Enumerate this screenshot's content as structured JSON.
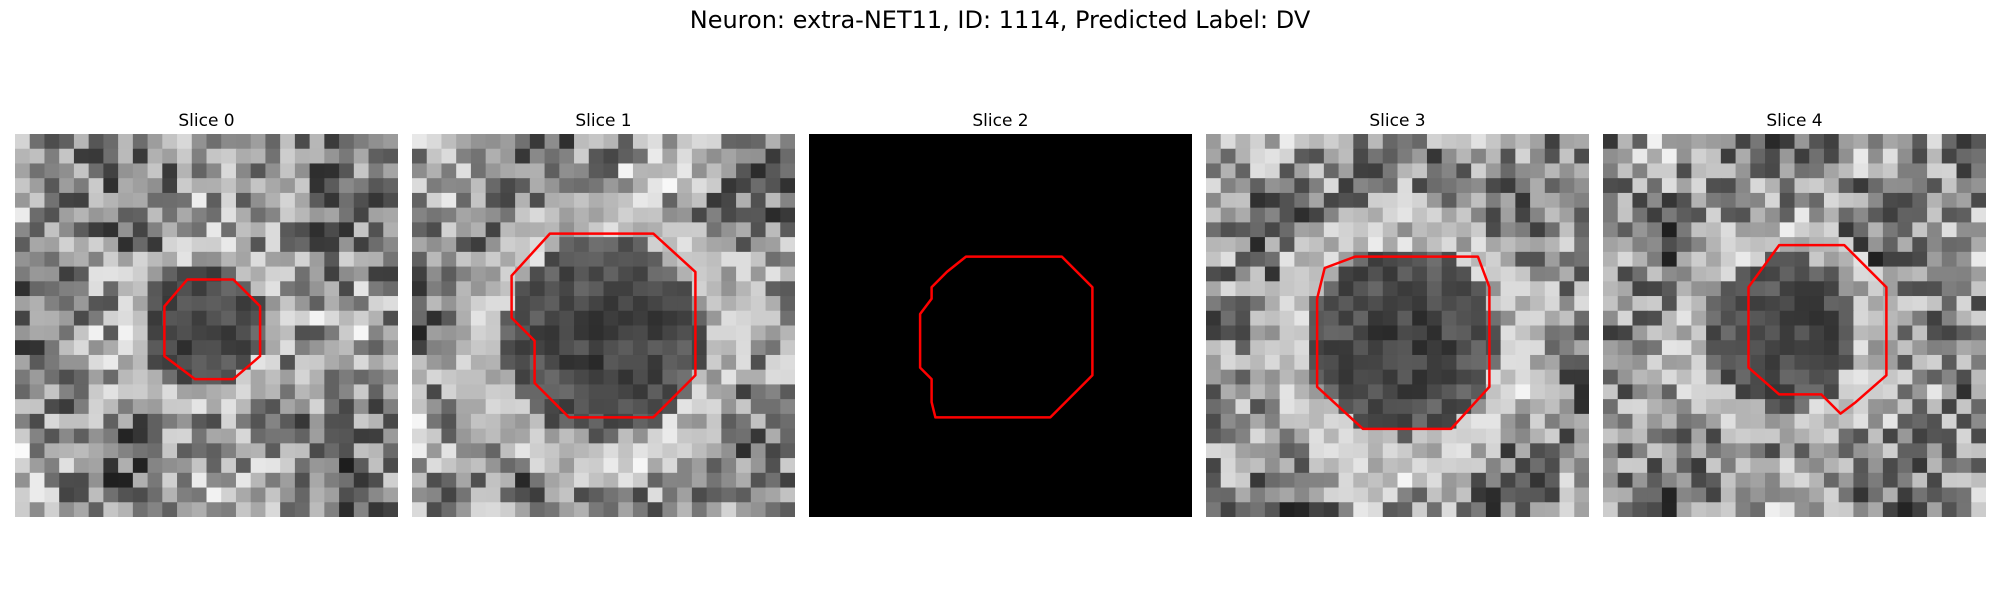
{
  "figure": {
    "title": "Neuron: extra-NET11, ID: 1114, Predicted Label: DV"
  },
  "panels": [
    {
      "title": "Slice 0",
      "blank": false,
      "seed": 11,
      "dark_center": [
        0.49,
        0.5
      ],
      "dark_radius": 0.16,
      "contour": [
        [
          0.49,
          0.38
        ],
        [
          0.57,
          0.38
        ],
        [
          0.64,
          0.45
        ],
        [
          0.64,
          0.58
        ],
        [
          0.57,
          0.64
        ],
        [
          0.47,
          0.64
        ],
        [
          0.39,
          0.58
        ],
        [
          0.39,
          0.45
        ],
        [
          0.45,
          0.38
        ]
      ]
    },
    {
      "title": "Slice 1",
      "blank": false,
      "seed": 23,
      "dark_center": [
        0.5,
        0.53
      ],
      "dark_radius": 0.26,
      "contour": [
        [
          0.36,
          0.26
        ],
        [
          0.63,
          0.26
        ],
        [
          0.74,
          0.36
        ],
        [
          0.74,
          0.63
        ],
        [
          0.63,
          0.74
        ],
        [
          0.41,
          0.74
        ],
        [
          0.32,
          0.65
        ],
        [
          0.32,
          0.54
        ],
        [
          0.26,
          0.48
        ],
        [
          0.26,
          0.37
        ]
      ]
    },
    {
      "title": "Slice 2",
      "blank": true,
      "seed": 0,
      "dark_center": [
        0.5,
        0.5
      ],
      "dark_radius": 0,
      "contour": [
        [
          0.41,
          0.32
        ],
        [
          0.66,
          0.32
        ],
        [
          0.74,
          0.4
        ],
        [
          0.74,
          0.63
        ],
        [
          0.63,
          0.74
        ],
        [
          0.33,
          0.74
        ],
        [
          0.32,
          0.7
        ],
        [
          0.32,
          0.64
        ],
        [
          0.29,
          0.61
        ],
        [
          0.29,
          0.47
        ],
        [
          0.32,
          0.43
        ],
        [
          0.32,
          0.4
        ],
        [
          0.36,
          0.36
        ]
      ]
    },
    {
      "title": "Slice 3",
      "blank": false,
      "seed": 37,
      "dark_center": [
        0.51,
        0.54
      ],
      "dark_radius": 0.25,
      "contour": [
        [
          0.31,
          0.35
        ],
        [
          0.39,
          0.32
        ],
        [
          0.71,
          0.32
        ],
        [
          0.74,
          0.4
        ],
        [
          0.74,
          0.66
        ],
        [
          0.64,
          0.77
        ],
        [
          0.41,
          0.77
        ],
        [
          0.29,
          0.66
        ],
        [
          0.29,
          0.43
        ]
      ]
    },
    {
      "title": "Slice 4",
      "blank": false,
      "seed": 53,
      "dark_center": [
        0.47,
        0.52
      ],
      "dark_radius": 0.2,
      "contour": [
        [
          0.46,
          0.29
        ],
        [
          0.63,
          0.29
        ],
        [
          0.74,
          0.4
        ],
        [
          0.74,
          0.63
        ],
        [
          0.66,
          0.7
        ],
        [
          0.62,
          0.73
        ],
        [
          0.57,
          0.68
        ],
        [
          0.46,
          0.68
        ],
        [
          0.38,
          0.61
        ],
        [
          0.38,
          0.4
        ]
      ]
    }
  ],
  "colors": {
    "contour": "#ff0000",
    "blank": "#000000"
  }
}
